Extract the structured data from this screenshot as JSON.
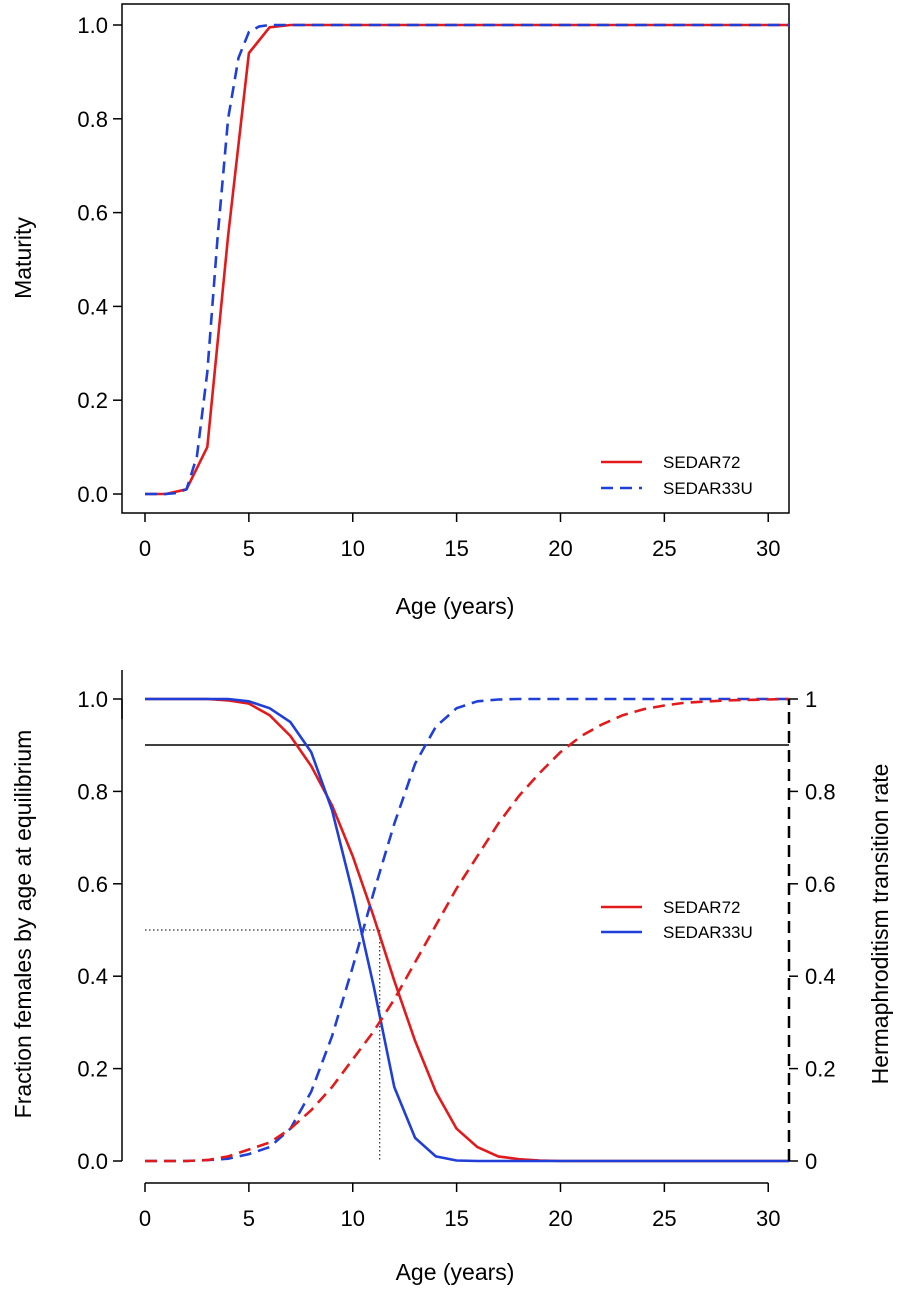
{
  "chart_data": [
    {
      "type": "line",
      "title": "",
      "xlabel": "Age (years)",
      "ylabel": "Maturity",
      "xlim": [
        0,
        31
      ],
      "ylim": [
        0,
        1
      ],
      "xticks": [
        "0",
        "5",
        "10",
        "15",
        "20",
        "25",
        "30"
      ],
      "yticks": [
        "0.0",
        "0.2",
        "0.4",
        "0.6",
        "0.8",
        "1.0"
      ],
      "legend_position": "bottom-right",
      "grid": false,
      "series": [
        {
          "name": "SEDAR72",
          "color": "#e31a1c",
          "dash": "solid",
          "x": [
            0,
            1,
            2,
            3,
            4,
            5,
            6,
            7,
            8,
            9,
            10,
            15,
            20,
            25,
            31
          ],
          "y": [
            0.0,
            0.0,
            0.01,
            0.1,
            0.55,
            0.94,
            0.995,
            1.0,
            1.0,
            1.0,
            1.0,
            1.0,
            1.0,
            1.0,
            1.0
          ]
        },
        {
          "name": "SEDAR33U",
          "color": "#1f3fd8",
          "dash": "dashed",
          "x": [
            0,
            1,
            1.5,
            2,
            2.5,
            3,
            3.5,
            4,
            4.5,
            5,
            5.5,
            6,
            7,
            8,
            10,
            15,
            20,
            25,
            31
          ],
          "y": [
            0.0,
            0.0,
            0.002,
            0.01,
            0.08,
            0.26,
            0.55,
            0.8,
            0.93,
            0.985,
            0.997,
            1.0,
            1.0,
            1.0,
            1.0,
            1.0,
            1.0,
            1.0,
            1.0
          ]
        }
      ]
    },
    {
      "type": "line",
      "title": "",
      "xlabel": "Age (years)",
      "ylabel": "Fraction females by age at equilibrium",
      "ylabel_right": "Hermaphroditism transition rate",
      "xlim": [
        0,
        31
      ],
      "ylim": [
        0,
        1
      ],
      "xticks": [
        "0",
        "5",
        "10",
        "15",
        "20",
        "25",
        "30"
      ],
      "yticks": [
        "0.0",
        "0.2",
        "0.4",
        "0.6",
        "0.8",
        "1.0"
      ],
      "yticks_right": [
        "0",
        "0.2",
        "0.4",
        "0.6",
        "0.8",
        "1"
      ],
      "legend_position": "center-right",
      "grid": false,
      "reference_lines": {
        "h_y": 0.5,
        "v_x": 11.3
      },
      "series": [
        {
          "name": "SEDAR72",
          "color": "#e31a1c",
          "dash": "solid",
          "x": [
            0,
            1,
            2,
            3,
            4,
            5,
            6,
            7,
            8,
            9,
            10,
            11,
            12,
            13,
            14,
            15,
            16,
            17,
            18,
            19,
            20,
            25,
            31
          ],
          "y": [
            1.0,
            1.0,
            1.0,
            1.0,
            0.997,
            0.99,
            0.965,
            0.92,
            0.855,
            0.77,
            0.66,
            0.53,
            0.39,
            0.26,
            0.15,
            0.07,
            0.03,
            0.01,
            0.004,
            0.001,
            0.0,
            0.0,
            0.0
          ]
        },
        {
          "name": "SEDAR33U",
          "color": "#1f3fd8",
          "dash": "solid",
          "x": [
            0,
            1,
            2,
            3,
            4,
            5,
            6,
            7,
            8,
            9,
            10,
            11,
            12,
            13,
            14,
            15,
            16,
            20,
            25,
            31
          ],
          "y": [
            1.0,
            1.0,
            1.0,
            1.0,
            1.0,
            0.995,
            0.98,
            0.95,
            0.885,
            0.76,
            0.58,
            0.38,
            0.16,
            0.05,
            0.01,
            0.001,
            0.0,
            0.0,
            0.0,
            0.0
          ]
        },
        {
          "name": "",
          "color": "#1f3fd8",
          "dash": "dashed",
          "x": [
            0,
            1,
            2,
            3,
            4,
            5,
            6,
            7,
            8,
            9,
            10,
            11,
            12,
            13,
            14,
            15,
            16,
            17,
            18,
            19,
            20,
            25,
            31
          ],
          "y": [
            0.0,
            0.0,
            0.0,
            0.002,
            0.005,
            0.015,
            0.03,
            0.07,
            0.15,
            0.27,
            0.42,
            0.58,
            0.73,
            0.86,
            0.94,
            0.98,
            0.995,
            0.999,
            1.0,
            1.0,
            1.0,
            1.0,
            1.0
          ]
        },
        {
          "name": "",
          "color": "#e31a1c",
          "dash": "dashed",
          "x": [
            0,
            1,
            2,
            3,
            4,
            5,
            6,
            7,
            8,
            9,
            10,
            11,
            12,
            13,
            14,
            15,
            16,
            17,
            18,
            19,
            20,
            21,
            22,
            23,
            24,
            25,
            26,
            28,
            31
          ],
          "y": [
            0.0,
            0.0,
            0.0,
            0.002,
            0.01,
            0.025,
            0.04,
            0.07,
            0.11,
            0.16,
            0.22,
            0.28,
            0.35,
            0.43,
            0.51,
            0.59,
            0.66,
            0.73,
            0.79,
            0.84,
            0.885,
            0.92,
            0.945,
            0.965,
            0.978,
            0.986,
            0.992,
            0.997,
            1.0
          ]
        },
        {
          "name": "",
          "color": "#000000",
          "dash": "dashed",
          "x": [
            31,
            31
          ],
          "y": [
            0.0,
            1.0
          ]
        }
      ]
    }
  ]
}
